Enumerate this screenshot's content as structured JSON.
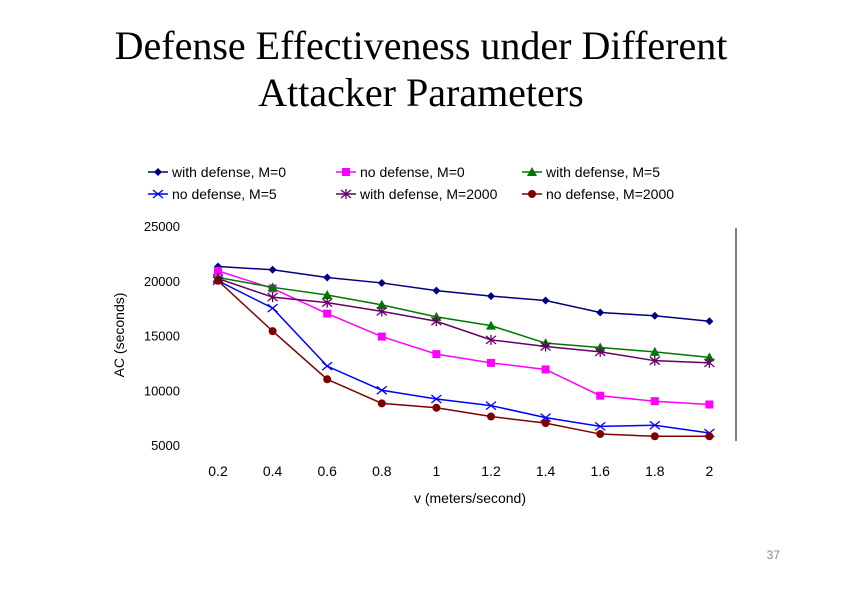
{
  "slide": {
    "title_line1": "Defense Effectiveness under Different",
    "title_line2": "Attacker Parameters",
    "page_number": "37"
  },
  "chart_data": {
    "type": "line",
    "title": "",
    "xlabel": "v (meters/second)",
    "ylabel": "AC (seconds)",
    "x": [
      "0.2",
      "0.4",
      "0.6",
      "0.8",
      "1",
      "1.2",
      "1.4",
      "1.6",
      "1.8",
      "2"
    ],
    "y_ticks": [
      "25000",
      "20000",
      "15000",
      "10000",
      "5000"
    ],
    "ylim": [
      5000,
      25000
    ],
    "grid": false,
    "legend_position": "top",
    "series": [
      {
        "name": "with defense, M=0",
        "marker": "diamond",
        "color": "#000080",
        "values": [
          21300,
          21000,
          20300,
          19800,
          19100,
          18600,
          18200,
          17100,
          16800,
          16300
        ]
      },
      {
        "name": "no defense, M=0",
        "marker": "square",
        "color": "#ff00ff",
        "values": [
          20900,
          19300,
          17000,
          14900,
          13300,
          12500,
          11900,
          9500,
          9000,
          8700
        ]
      },
      {
        "name": "with defense, M=5",
        "marker": "triangle",
        "color": "#007700",
        "values": [
          20300,
          19400,
          18700,
          17800,
          16700,
          15900,
          14300,
          13900,
          13500,
          13000
        ]
      },
      {
        "name": "no defense, M=5",
        "marker": "x",
        "color": "#0000ff",
        "values": [
          20000,
          17500,
          12200,
          10000,
          9200,
          8600,
          7500,
          6700,
          6800,
          6100
        ]
      },
      {
        "name": "with defense, M=2000",
        "marker": "star",
        "color": "#660066",
        "values": [
          20200,
          18500,
          18000,
          17200,
          16300,
          14600,
          14000,
          13500,
          12700,
          12500
        ]
      },
      {
        "name": "no defense, M=2000",
        "marker": "circle",
        "color": "#800000",
        "values": [
          20000,
          15400,
          11000,
          8800,
          8400,
          7600,
          7000,
          6000,
          5800,
          5800
        ]
      }
    ]
  }
}
